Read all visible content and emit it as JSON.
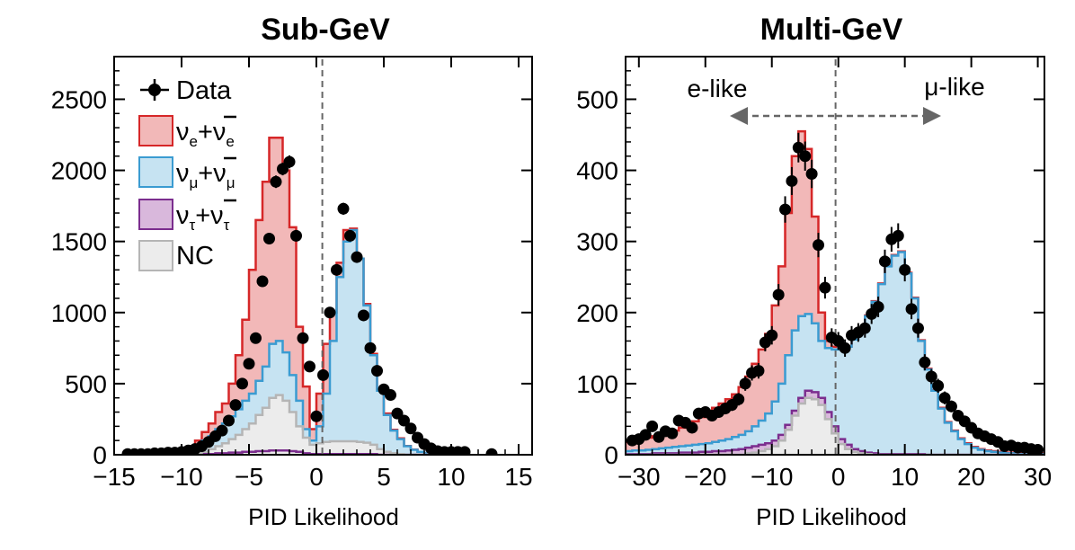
{
  "legend": {
    "data": "Data",
    "nue": {
      "a": "ν",
      "sub": "e",
      "plus": "+",
      "b": "ν",
      "sub2": "e"
    },
    "numu": {
      "a": "ν",
      "sub": "μ",
      "plus": "+",
      "b": "ν",
      "sub2": "μ"
    },
    "nutau": {
      "a": "ν",
      "sub": "τ",
      "plus": "+",
      "b": "ν",
      "sub2": "τ"
    },
    "nc": "NC"
  },
  "colors": {
    "nue_fill": "#f2b8b8",
    "nue_line": "#d62728",
    "numu_fill": "#c6e3f2",
    "numu_line": "#3a9bd1",
    "nutau_fill": "#d9b8dc",
    "nutau_line": "#7b2d8e",
    "nc_fill": "#ececec",
    "nc_line": "#b5b5b5",
    "data": "#000000"
  },
  "chart_data": [
    {
      "type": "histogram",
      "title": "Sub-GeV",
      "xlabel": "PID Likelihood",
      "ylabel": "",
      "xlim": [
        -15,
        16
      ],
      "ylim": [
        0,
        2800
      ],
      "xticks": [
        -15,
        -10,
        -5,
        0,
        5,
        10,
        15
      ],
      "xtick_labels": [
        "−15",
        "−10",
        "−5",
        "0",
        "5",
        "10",
        "15"
      ],
      "yticks": [
        0,
        500,
        1000,
        1500,
        2000,
        2500
      ],
      "ytick_labels": [
        "0",
        "500",
        "1000",
        "1500",
        "2000",
        "2500"
      ],
      "stack": {
        "edges": [
          -10,
          -9.5,
          -9,
          -8.5,
          -8,
          -7.5,
          -7,
          -6.5,
          -6,
          -5.5,
          -5,
          -4.5,
          -4,
          -3.5,
          -3,
          -2.5,
          -2,
          -1.5,
          -1,
          -0.5,
          0,
          0.5,
          1,
          1.5,
          2,
          2.5,
          3,
          3.5,
          4,
          4.5,
          5,
          5.5,
          6,
          6.5,
          7,
          7.5,
          8,
          8.5,
          9,
          9.5,
          10
        ],
        "nc": [
          0,
          5,
          10,
          20,
          40,
          60,
          80,
          110,
          140,
          180,
          220,
          280,
          330,
          400,
          420,
          380,
          300,
          200,
          120,
          70,
          80,
          90,
          95,
          95,
          95,
          95,
          90,
          85,
          70,
          40,
          20,
          10,
          5,
          0,
          0,
          0,
          0,
          0,
          0,
          0
        ],
        "nutau": [
          0,
          0,
          0,
          5,
          5,
          10,
          10,
          15,
          15,
          20,
          20,
          25,
          25,
          30,
          30,
          30,
          25,
          20,
          10,
          5,
          5,
          5,
          5,
          5,
          5,
          5,
          5,
          5,
          5,
          0,
          0,
          0,
          0,
          0,
          0,
          0,
          0,
          0,
          0,
          0
        ],
        "numu": [
          20,
          40,
          60,
          100,
          130,
          180,
          220,
          270,
          320,
          380,
          430,
          520,
          620,
          780,
          800,
          720,
          560,
          380,
          180,
          100,
          200,
          430,
          800,
          1250,
          1500,
          1580,
          1380,
          1050,
          700,
          450,
          280,
          170,
          110,
          60,
          35,
          20,
          10,
          5,
          0,
          0
        ],
        "nue": [
          40,
          60,
          100,
          160,
          220,
          300,
          360,
          500,
          700,
          950,
          1300,
          1650,
          1920,
          2230,
          2230,
          2000,
          1600,
          900,
          480,
          180,
          430,
          780,
          1000,
          1350,
          1580,
          1590,
          1380,
          1060,
          710,
          460,
          290,
          175,
          115,
          62,
          36,
          20,
          10,
          5,
          0,
          0
        ]
      },
      "points": {
        "x": [
          -14,
          -13.5,
          -13,
          -12.5,
          -12,
          -11.5,
          -11,
          -10.5,
          -10,
          -9.5,
          -9,
          -8.5,
          -8,
          -7.5,
          -7,
          -6.5,
          -6,
          -5.5,
          -5,
          -4.5,
          -4,
          -3.5,
          -3,
          -2.5,
          -2,
          -1.5,
          -1,
          -0.5,
          0,
          0.5,
          1,
          1.5,
          2,
          2.5,
          3,
          3.5,
          4,
          4.5,
          5,
          5.5,
          6,
          6.5,
          7,
          7.5,
          8,
          8.5,
          9,
          9.5,
          10,
          10.5,
          11,
          13
        ],
        "y": [
          5,
          5,
          5,
          5,
          10,
          10,
          15,
          15,
          20,
          30,
          40,
          60,
          90,
          130,
          170,
          240,
          350,
          500,
          640,
          820,
          1220,
          1520,
          1920,
          2010,
          2060,
          1540,
          820,
          620,
          270,
          560,
          1000,
          1300,
          1730,
          1540,
          1390,
          980,
          750,
          590,
          460,
          420,
          290,
          240,
          185,
          120,
          75,
          45,
          25,
          20,
          20,
          20,
          20,
          5
        ]
      }
    },
    {
      "type": "histogram",
      "title": "Multi-GeV",
      "xlabel": "PID Likelihood",
      "ylabel": "",
      "xlim": [
        -32,
        31
      ],
      "ylim": [
        0,
        560
      ],
      "xticks": [
        -30,
        -20,
        -10,
        0,
        10,
        20,
        30
      ],
      "xtick_labels": [
        "−30",
        "−20",
        "−10",
        "0",
        "10",
        "20",
        "30"
      ],
      "yticks": [
        0,
        100,
        200,
        300,
        400,
        500
      ],
      "ytick_labels": [
        "0",
        "100",
        "200",
        "300",
        "400",
        "500"
      ],
      "annotations": {
        "left": "e-like",
        "right": "μ-like"
      },
      "stack": {
        "edges": [
          -32,
          -31,
          -30,
          -29,
          -28,
          -27,
          -26,
          -25,
          -24,
          -23,
          -22,
          -21,
          -20,
          -19,
          -18,
          -17,
          -16,
          -15,
          -14,
          -13,
          -12,
          -11,
          -10,
          -9,
          -8,
          -7,
          -6,
          -5,
          -4,
          -3,
          -2,
          -1,
          0,
          1,
          2,
          3,
          4,
          5,
          6,
          7,
          8,
          9,
          10,
          11,
          12,
          13,
          14,
          15,
          16,
          17,
          18,
          19,
          20,
          21,
          22,
          23,
          24,
          25,
          26,
          27,
          28,
          29,
          30,
          31
        ],
        "nc": [
          0,
          0,
          0,
          0,
          0,
          0,
          0,
          0,
          0,
          0,
          0,
          0,
          0,
          0,
          0,
          0,
          0,
          0,
          2,
          3,
          5,
          8,
          12,
          20,
          35,
          55,
          72,
          80,
          78,
          70,
          50,
          30,
          15,
          8,
          4,
          2,
          1,
          0,
          0,
          0,
          0,
          0,
          0,
          0,
          0,
          0,
          0,
          0,
          0,
          0,
          0,
          0,
          0,
          0,
          0,
          0,
          0,
          0,
          0,
          0,
          0,
          0,
          0
        ],
        "nutau": [
          1,
          1,
          1,
          1,
          2,
          2,
          2,
          2,
          3,
          3,
          3,
          4,
          4,
          5,
          5,
          6,
          7,
          8,
          10,
          12,
          14,
          16,
          20,
          28,
          42,
          62,
          80,
          90,
          88,
          80,
          60,
          40,
          22,
          14,
          8,
          5,
          3,
          2,
          1,
          1,
          1,
          1,
          1,
          1,
          1,
          0,
          0,
          0,
          0,
          0,
          0,
          0,
          0,
          0,
          0,
          0,
          0,
          0,
          0,
          0,
          0,
          0,
          0
        ],
        "numu": [
          5,
          6,
          6,
          7,
          8,
          9,
          10,
          11,
          12,
          13,
          14,
          15,
          16,
          18,
          20,
          22,
          25,
          28,
          33,
          40,
          48,
          58,
          75,
          100,
          140,
          175,
          195,
          198,
          185,
          160,
          150,
          148,
          150,
          152,
          162,
          175,
          195,
          215,
          240,
          265,
          280,
          285,
          255,
          220,
          160,
          120,
          90,
          65,
          45,
          33,
          22,
          15,
          10,
          7,
          5,
          4,
          3,
          2,
          2,
          1,
          1,
          1,
          1
        ],
        "nue": [
          18,
          20,
          22,
          24,
          26,
          28,
          31,
          34,
          38,
          42,
          47,
          53,
          60,
          66,
          72,
          78,
          85,
          95,
          110,
          128,
          148,
          170,
          210,
          265,
          340,
          420,
          455,
          430,
          335,
          200,
          160,
          152,
          150,
          152,
          162,
          176,
          196,
          216,
          241,
          266,
          281,
          286,
          256,
          221,
          161,
          121,
          91,
          66,
          46,
          34,
          23,
          16,
          11,
          8,
          6,
          5,
          4,
          3,
          3,
          2,
          2,
          2,
          2
        ]
      },
      "points": {
        "x": [
          -31,
          -30,
          -29,
          -28,
          -27,
          -26,
          -25,
          -24,
          -23,
          -22,
          -21,
          -20,
          -19,
          -18,
          -17,
          -16,
          -15,
          -14,
          -13,
          -12,
          -11,
          -10,
          -9,
          -8,
          -7,
          -6,
          -5,
          -4,
          -3,
          -2,
          -1,
          0,
          1,
          2,
          3,
          4,
          5,
          6,
          7,
          8,
          9,
          10,
          11,
          12,
          13,
          14,
          15,
          16,
          17,
          18,
          19,
          20,
          21,
          22,
          23,
          24,
          25,
          26,
          27,
          28,
          29,
          30
        ],
        "y": [
          20,
          22,
          28,
          40,
          25,
          33,
          30,
          48,
          45,
          38,
          58,
          60,
          55,
          60,
          65,
          70,
          78,
          100,
          115,
          118,
          158,
          168,
          225,
          345,
          385,
          432,
          420,
          395,
          295,
          235,
          165,
          160,
          150,
          168,
          172,
          178,
          198,
          208,
          272,
          303,
          308,
          260,
          205,
          178,
          130,
          110,
          97,
          80,
          68,
          55,
          47,
          38,
          30,
          26,
          22,
          18,
          12,
          13,
          10,
          10,
          8,
          7
        ]
      }
    }
  ]
}
